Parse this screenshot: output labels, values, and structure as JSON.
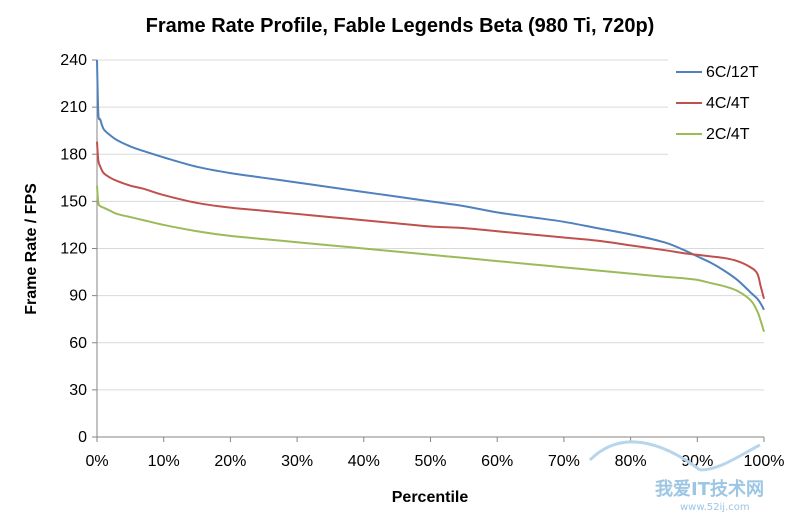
{
  "chart_data": {
    "type": "line",
    "title": "Frame Rate Profile, Fable Legends Beta (980 Ti, 720p)",
    "xlabel": "Percentile",
    "ylabel": "Frame Rate / FPS",
    "xlim": [
      0,
      100
    ],
    "ylim": [
      0,
      240
    ],
    "x_ticks": [
      "0%",
      "10%",
      "20%",
      "30%",
      "40%",
      "50%",
      "60%",
      "70%",
      "80%",
      "90%",
      "100%"
    ],
    "y_ticks": [
      "0",
      "30",
      "60",
      "90",
      "120",
      "150",
      "180",
      "210",
      "240"
    ],
    "grid": "horizontal",
    "legend_position": "top-right",
    "x": [
      0,
      0.2,
      0.5,
      1,
      2,
      3,
      5,
      7,
      10,
      15,
      20,
      25,
      30,
      35,
      40,
      45,
      50,
      55,
      60,
      65,
      70,
      75,
      80,
      85,
      88,
      90,
      92,
      94,
      96,
      98,
      99,
      99.5,
      100
    ],
    "series": [
      {
        "name": "6C/12T",
        "color": "#4f81bd",
        "values": [
          240,
          206,
          202,
          196,
          192,
          189,
          185,
          182,
          178,
          172,
          168,
          165,
          162,
          159,
          156,
          153,
          150,
          147,
          143,
          140,
          137,
          133,
          129,
          124,
          119,
          115,
          111,
          106,
          100,
          92,
          88,
          85,
          81
        ]
      },
      {
        "name": "4C/4T",
        "color": "#c0504d",
        "values": [
          188,
          176,
          172,
          168,
          165,
          163,
          160,
          158,
          154,
          149,
          146,
          144,
          142,
          140,
          138,
          136,
          134,
          133,
          131,
          129,
          127,
          125,
          122,
          119,
          117,
          116,
          115,
          114,
          112,
          108,
          104,
          96,
          88
        ]
      },
      {
        "name": "2C/4T",
        "color": "#9bbb59",
        "values": [
          160,
          149,
          147,
          146,
          144,
          142,
          140,
          138,
          135,
          131,
          128,
          126,
          124,
          122,
          120,
          118,
          116,
          114,
          112,
          110,
          108,
          106,
          104,
          102,
          101,
          100,
          98,
          96,
          93,
          87,
          80,
          74,
          67
        ]
      }
    ]
  },
  "watermark": {
    "text": "我爱IT技术网",
    "subtext": "www.52ij.com"
  }
}
